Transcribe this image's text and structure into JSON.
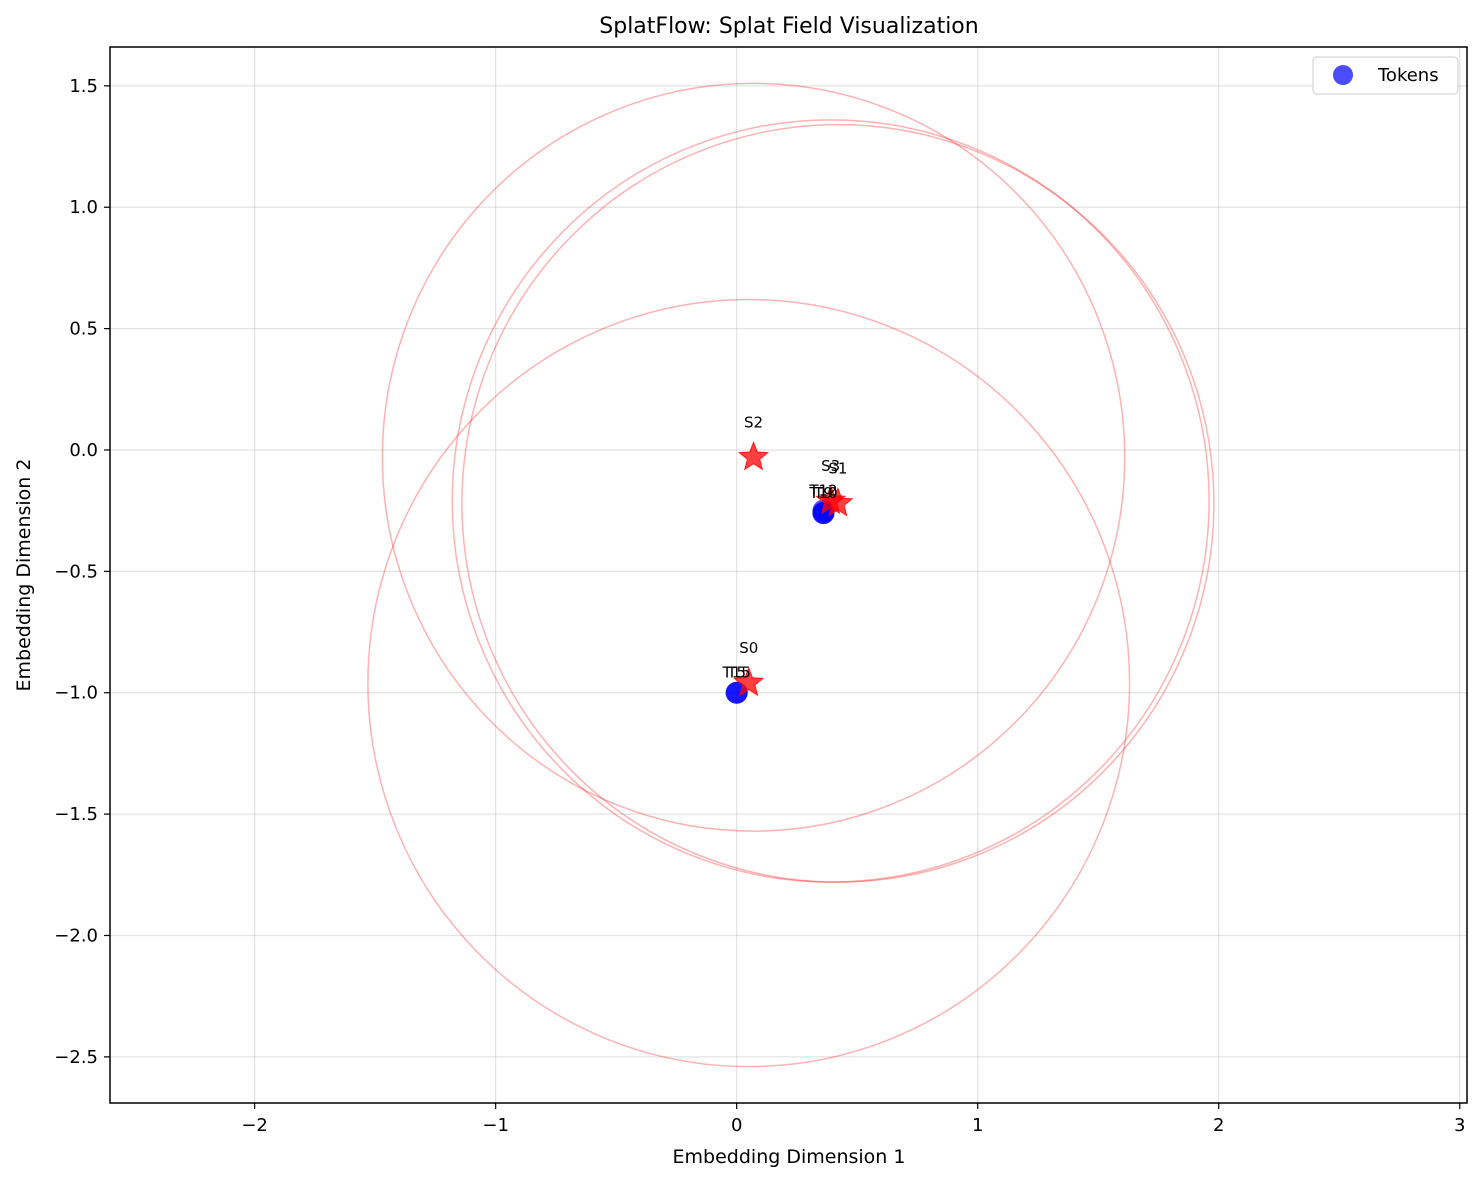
{
  "chart_data": {
    "type": "scatter",
    "title": "SplatFlow: Splat Field Visualization",
    "xlabel": "Embedding Dimension 1",
    "ylabel": "Embedding Dimension 2",
    "xlim": [
      -2.6,
      3.03
    ],
    "ylim": [
      -2.69,
      1.66
    ],
    "xticks": [
      -2,
      -1,
      0,
      1,
      2,
      3
    ],
    "yticks": [
      -2.5,
      -2.0,
      -1.5,
      -1.0,
      -0.5,
      0.0,
      0.5,
      1.0,
      1.5
    ],
    "grid": true,
    "legend": {
      "placement": "top-right",
      "entries": [
        "Tokens"
      ]
    },
    "colors": {
      "tokens": "#0000ff",
      "splats": "#ff0000",
      "circles": "#ff8080"
    },
    "series": [
      {
        "name": "Tokens",
        "marker": "circle",
        "points": [
          {
            "x": 0.0,
            "y": -1.0,
            "label": "T15"
          },
          {
            "x": 0.0,
            "y": -1.0,
            "label": "T5"
          },
          {
            "x": 0.36,
            "y": -0.26,
            "label": "T10"
          },
          {
            "x": 0.36,
            "y": -0.26,
            "label": "T9"
          },
          {
            "x": 0.36,
            "y": -0.25,
            "label": "T12"
          }
        ]
      },
      {
        "marker": "star",
        "points": [
          {
            "x": 0.05,
            "y": -0.96,
            "label": "S0"
          },
          {
            "x": 0.42,
            "y": -0.22,
            "label": "S1"
          },
          {
            "x": 0.07,
            "y": -0.03,
            "label": "S2"
          },
          {
            "x": 0.39,
            "y": -0.21,
            "label": "S3"
          }
        ]
      }
    ],
    "splat_circles": [
      {
        "cx": 0.05,
        "cy": -0.96,
        "r": 1.58
      },
      {
        "cx": 0.42,
        "cy": -0.22,
        "r": 1.56
      },
      {
        "cx": 0.07,
        "cy": -0.03,
        "r": 1.54
      },
      {
        "cx": 0.39,
        "cy": -0.21,
        "r": 1.57
      }
    ]
  }
}
